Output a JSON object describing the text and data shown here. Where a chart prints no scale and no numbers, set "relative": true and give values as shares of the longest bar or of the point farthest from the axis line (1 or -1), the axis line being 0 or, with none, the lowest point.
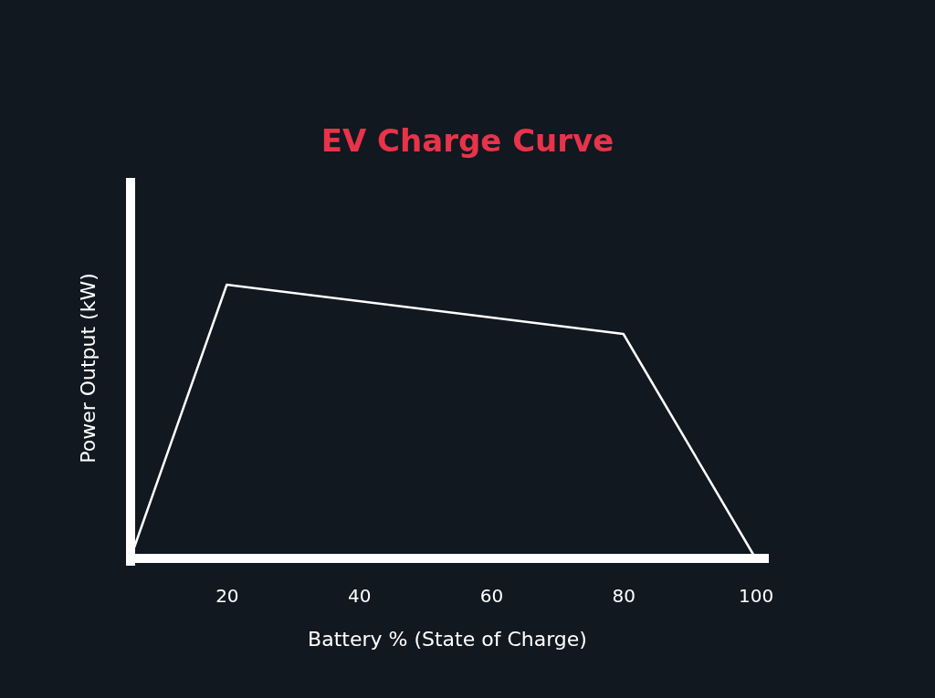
{
  "chart_data": {
    "type": "line",
    "title": "EV Charge Curve",
    "xlabel": "Battery % (State of Charge)",
    "ylabel": "Power Output (kW)",
    "x": [
      6,
      20,
      80,
      100
    ],
    "values": [
      0.04,
      1,
      0.82,
      0
    ],
    "color": "#ffffff",
    "relative": true,
    "xlim": [
      6,
      102
    ],
    "xticks": [
      20,
      40,
      60,
      80,
      100
    ],
    "tick_labels": "x",
    "marker": "none"
  }
}
